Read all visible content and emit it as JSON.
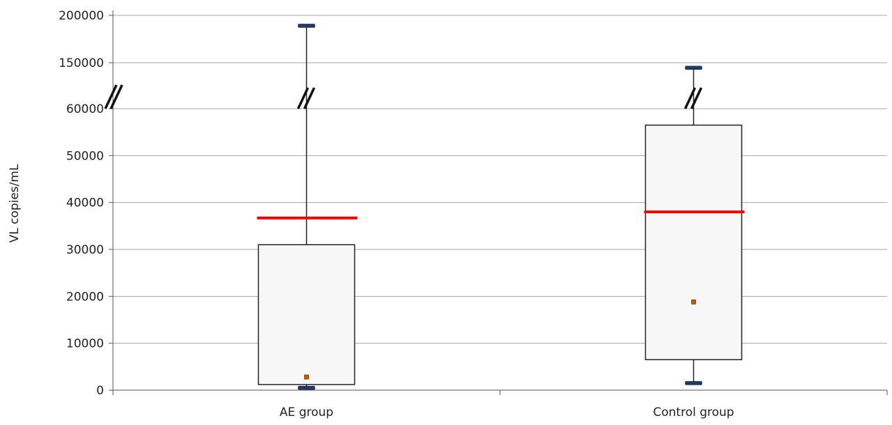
{
  "chart_data": {
    "type": "box",
    "ylabel": "VL copies/mL",
    "xlabel": "",
    "grid": true,
    "axis_break": {
      "lower_max": 60000,
      "upper_min": 150000
    },
    "yticks": [
      {
        "value": 0,
        "label": "0"
      },
      {
        "value": 10000,
        "label": "10000"
      },
      {
        "value": 20000,
        "label": "20000"
      },
      {
        "value": 30000,
        "label": "30000"
      },
      {
        "value": 40000,
        "label": "40000"
      },
      {
        "value": 50000,
        "label": "50000"
      },
      {
        "value": 60000,
        "label": "60000"
      },
      {
        "value": 150000,
        "label": "150000"
      },
      {
        "value": 200000,
        "label": "200000"
      }
    ],
    "categories": [
      "AE group",
      "Control group"
    ],
    "boxes": [
      {
        "category": "AE group",
        "whisker_low": 500,
        "q1": 1200,
        "median": 2800,
        "q3": 31000,
        "whisker_high": 189000,
        "mean": 36700
      },
      {
        "category": "Control group",
        "whisker_low": 1500,
        "q1": 6500,
        "median": 18800,
        "q3": 56500,
        "whisker_high": 140000,
        "mean": 38000
      }
    ],
    "colors": {
      "box_fill": "#f7f7f7",
      "box_stroke": "#222222",
      "whisker_cap": "#1f3864",
      "mean_line": "#ff0000",
      "median_marker": "#cc5500",
      "grid": "#a6a6a6"
    }
  }
}
